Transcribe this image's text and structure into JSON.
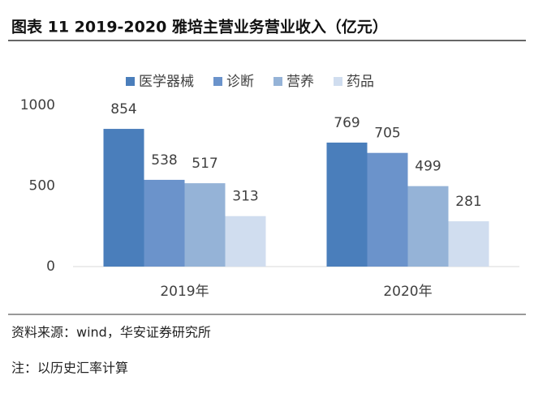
{
  "chart_data": {
    "type": "bar",
    "title": "图表 11 2019-2020 雅培主营业务营业收入（亿元）",
    "categories": [
      "2019年",
      "2020年"
    ],
    "series": [
      {
        "name": "医学器械",
        "color": "#4a7ebb",
        "values": [
          854,
          769
        ]
      },
      {
        "name": "诊断",
        "color": "#6b93cb",
        "values": [
          538,
          705
        ]
      },
      {
        "name": "营养",
        "color": "#95b3d7",
        "values": [
          517,
          499
        ]
      },
      {
        "name": "药品",
        "color": "#d0ddef",
        "values": [
          313,
          281
        ]
      }
    ],
    "ylim": [
      0,
      1000
    ],
    "yticks": [
      0,
      500,
      1000
    ],
    "grid": false,
    "legend": "top"
  },
  "source": "资料来源：wind，华安证券研究所",
  "note": "注：以历史汇率计算"
}
